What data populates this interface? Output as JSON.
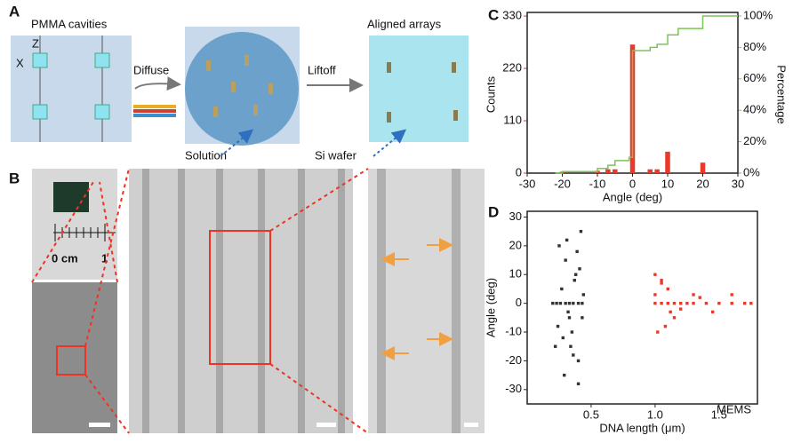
{
  "panel_a": {
    "label": "A",
    "left_title": "PMMA cavities",
    "axis_z": "Z",
    "axis_x": "X",
    "step_1": "Diffuse",
    "step_2": "Liftoff",
    "right_title": "Aligned arrays",
    "solution": "Solution",
    "wafer": "Si wafer"
  },
  "panel_b": {
    "label": "B",
    "ruler_zero": "0 cm",
    "ruler_one": "1"
  },
  "watermark": "MEMS",
  "chart_data": [
    {
      "type": "bar",
      "panel_label": "C",
      "x": [
        -20,
        -10,
        -7,
        -5,
        0,
        5,
        7,
        10,
        20
      ],
      "values": [
        3,
        5,
        8,
        8,
        270,
        8,
        8,
        45,
        22
      ],
      "color": "#e8392a",
      "xlabel": "Angle (deg)",
      "ylabel": "Counts",
      "y2label": "Percentage",
      "xlim": [
        -30,
        30
      ],
      "xticks": [
        -30,
        -20,
        -10,
        0,
        10,
        20,
        30
      ],
      "ylim": [
        0,
        330
      ],
      "yticks": [
        0,
        110,
        220,
        330
      ],
      "y2lim": [
        0,
        100
      ],
      "y2ticks": [
        {
          "value": 0,
          "label": "0%"
        },
        {
          "value": 20,
          "label": "20%"
        },
        {
          "value": 40,
          "label": "40%"
        },
        {
          "value": 60,
          "label": "60%"
        },
        {
          "value": 80,
          "label": "80%"
        },
        {
          "value": 100,
          "label": "100%"
        }
      ],
      "cumulative": {
        "axis": "y2",
        "color": "#7cc35a",
        "x": [
          -22,
          -20,
          -20,
          -10,
          -10,
          -7,
          -7,
          -5,
          -5,
          -1,
          -1,
          0,
          0,
          5,
          5,
          7,
          7,
          10,
          10,
          13,
          13,
          20,
          20,
          30
        ],
        "values": [
          0,
          0,
          1,
          1,
          3,
          3,
          5,
          5,
          8,
          8,
          10,
          10,
          78,
          78,
          80,
          80,
          82,
          82,
          88,
          88,
          92,
          92,
          100,
          100
        ]
      }
    },
    {
      "type": "scatter",
      "panel_label": "D",
      "xlabel": "DNA length (μm)",
      "ylabel": "Angle (deg)",
      "xlim": [
        0,
        1.8
      ],
      "xticks": [
        0.5,
        {
          "value": 1,
          "label": "1.0"
        },
        1.5
      ],
      "ylim": [
        -35,
        32
      ],
      "yticks": [
        -30,
        -20,
        -10,
        0,
        10,
        20,
        30
      ],
      "series": [
        {
          "color": "#333333",
          "x": [
            0.2,
            0.23,
            0.26,
            0.3,
            0.33,
            0.36,
            0.4,
            0.43,
            0.25,
            0.3,
            0.38,
            0.42,
            0.22,
            0.35,
            0.4,
            0.27,
            0.33,
            0.41,
            0.24,
            0.37,
            0.29,
            0.44,
            0.32,
            0.39,
            0.28,
            0.36,
            0.43,
            0.31,
            0.4,
            0.34
          ],
          "values": [
            0,
            0,
            0,
            0,
            0,
            0,
            0,
            0,
            20,
            15,
            10,
            25,
            -15,
            -10,
            -20,
            5,
            -5,
            12,
            -8,
            8,
            -25,
            3,
            -3,
            18,
            -12,
            -18,
            -5,
            22,
            -28,
            -15
          ]
        },
        {
          "color": "#e8392a",
          "x": [
            1.0,
            1.05,
            1.1,
            1.15,
            1.2,
            1.25,
            1.3,
            1.4,
            1.5,
            1.6,
            1.7,
            1.75,
            1.0,
            1.05,
            1.1,
            1.02,
            1.08,
            1.15,
            1.0,
            1.12,
            1.3,
            1.45,
            1.6,
            1.05,
            1.2,
            1.35
          ],
          "values": [
            0,
            0,
            0,
            0,
            0,
            0,
            0,
            0,
            0,
            0,
            0,
            0,
            10,
            8,
            5,
            -10,
            -8,
            -5,
            3,
            -3,
            3,
            -3,
            3,
            7,
            -2,
            2
          ]
        }
      ]
    }
  ]
}
